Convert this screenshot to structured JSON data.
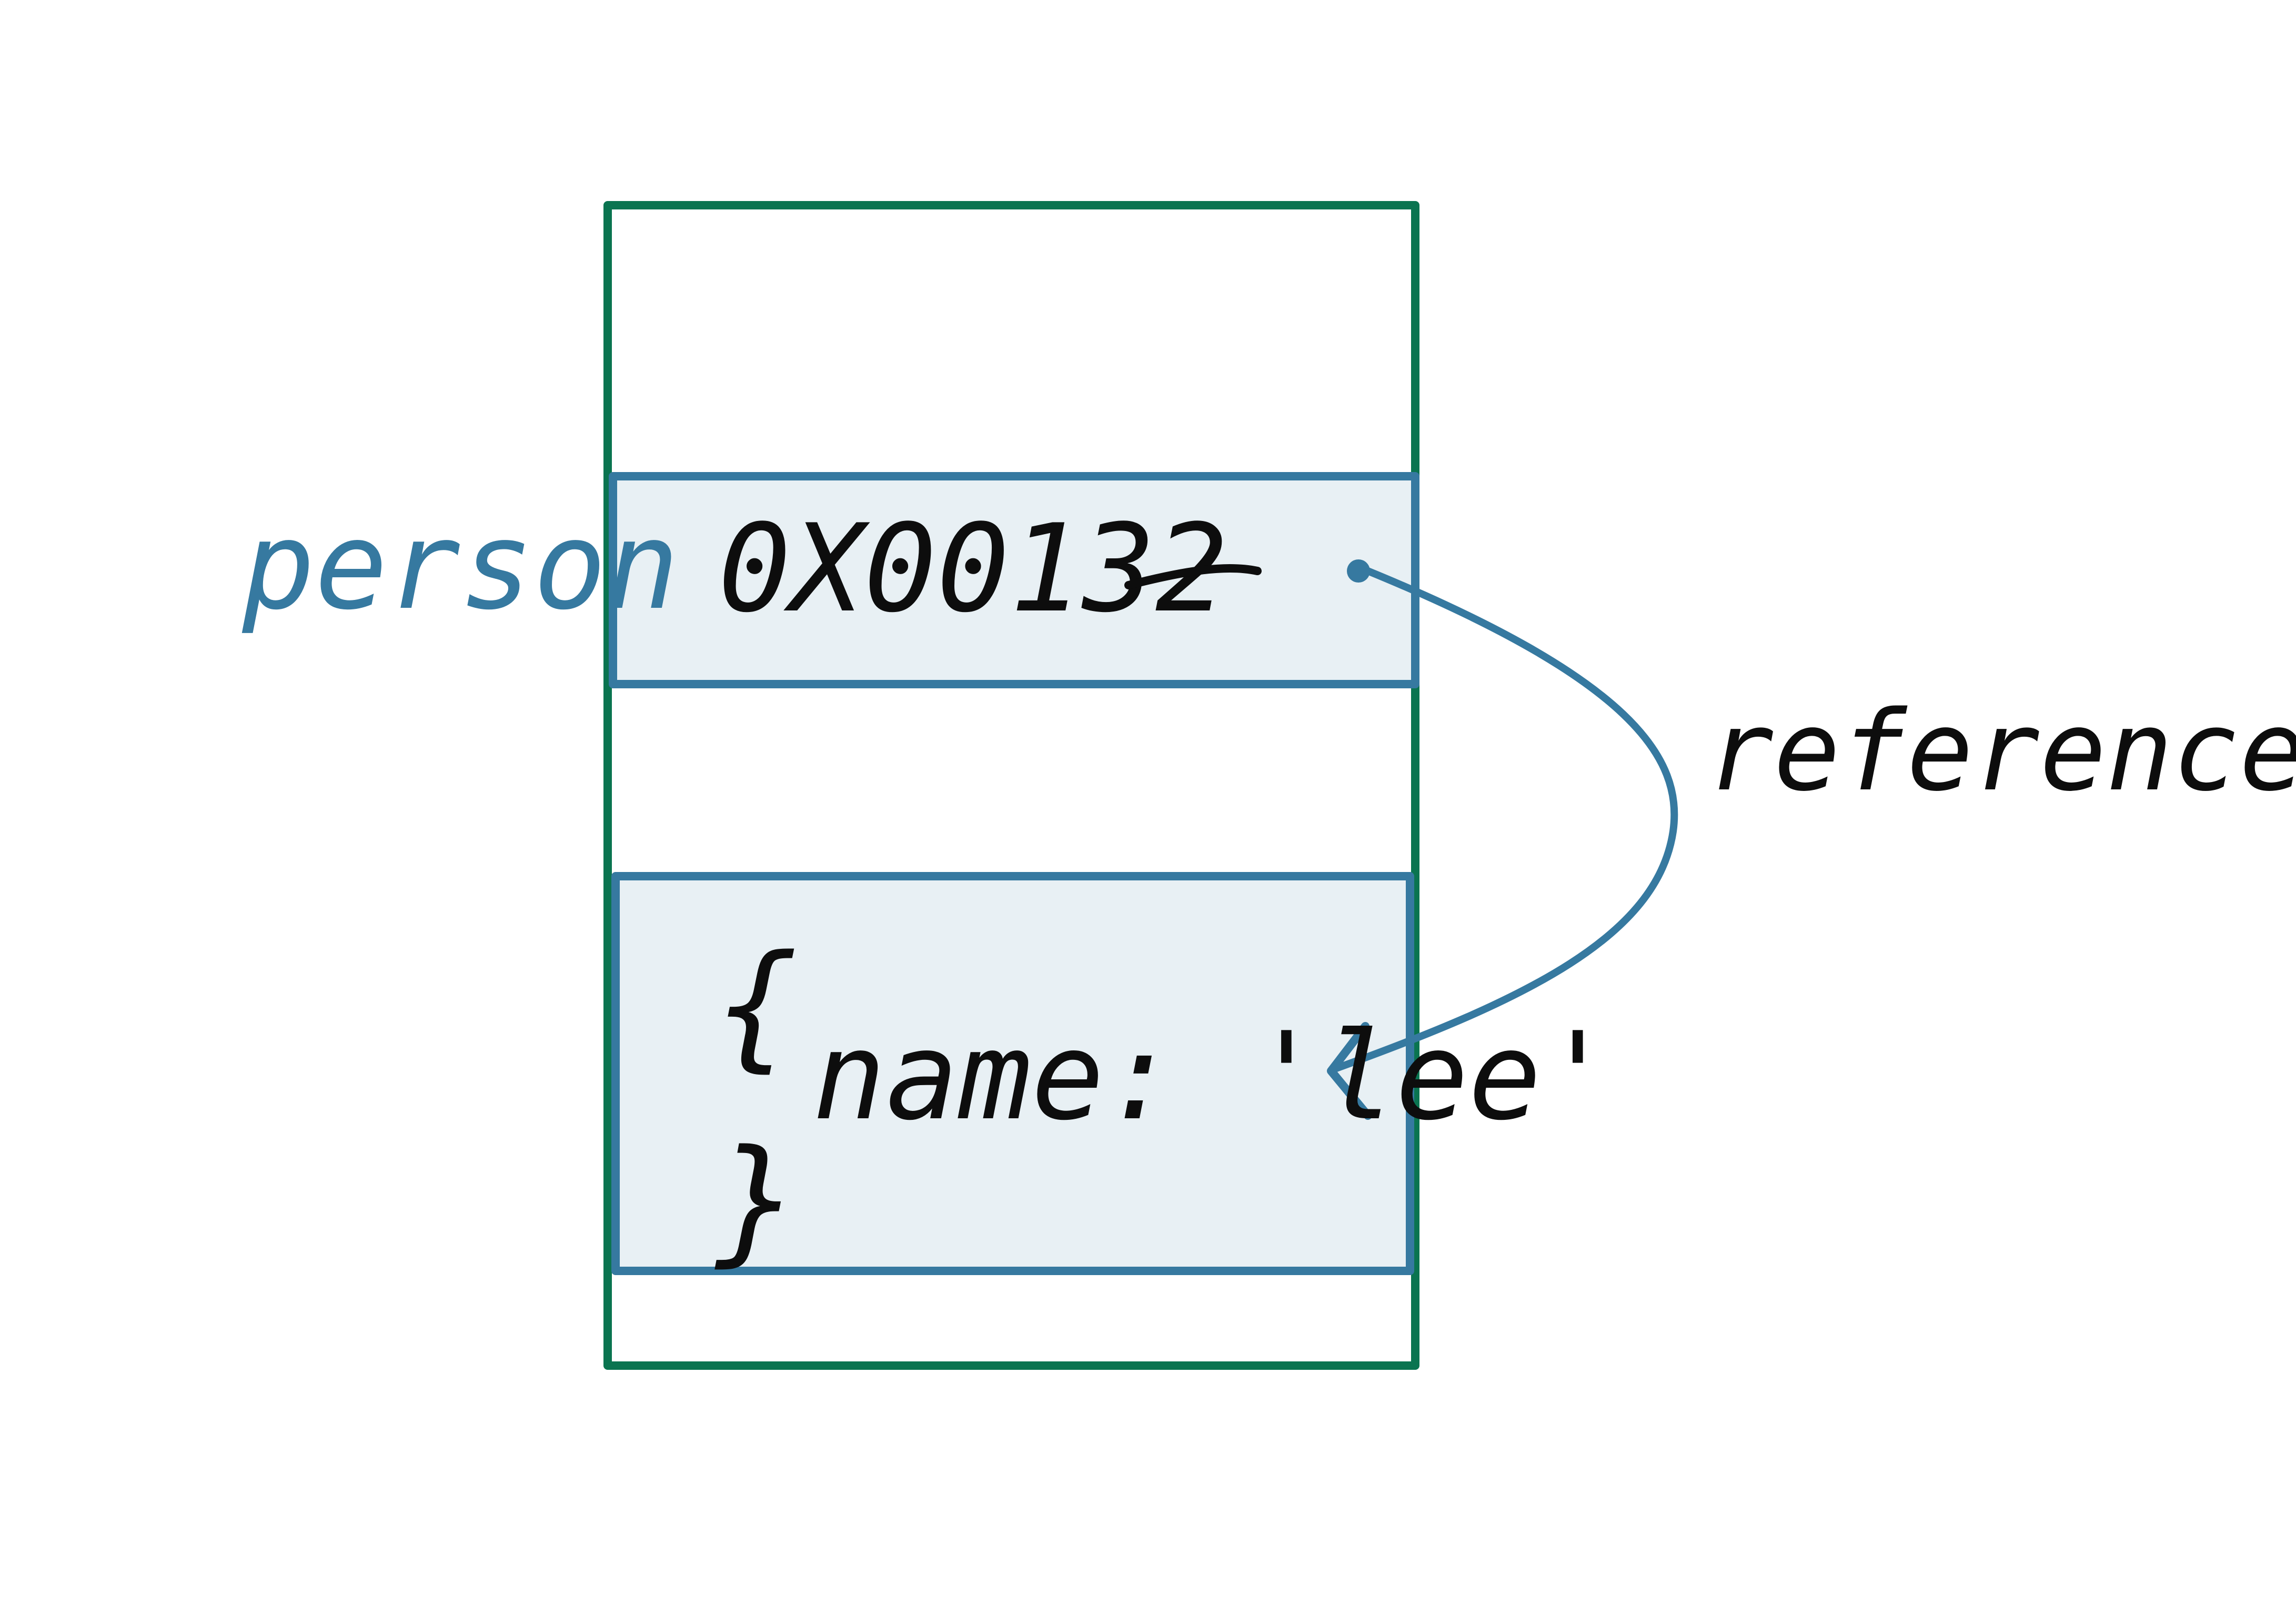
{
  "labels": {
    "variable_name": "person",
    "address_value": "0X00132",
    "reference_label": "reference",
    "object_open": "{",
    "object_body": "name: 'lee'",
    "object_close": "}"
  },
  "colors": {
    "memory_border": "#0a7450",
    "cell_border": "#3679a0",
    "cell_fill": "#e8f0f4",
    "arrow": "#3679a0",
    "ink": "#0d0d0d",
    "variable_ink": "#3679a0"
  }
}
